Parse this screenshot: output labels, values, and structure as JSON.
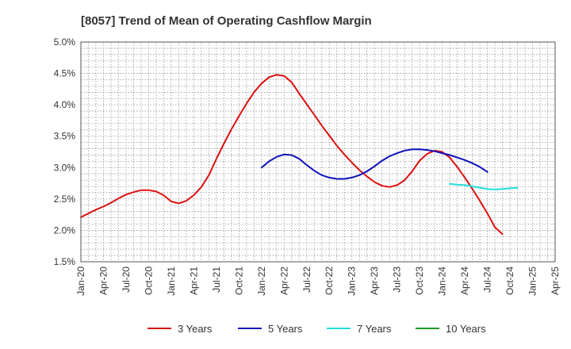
{
  "chart_data": {
    "type": "line",
    "title": "[8057]  Trend of Mean of Operating Cashflow Margin",
    "xlabel": "",
    "ylabel": "",
    "x_ticks": [
      "Jan-20",
      "Apr-20",
      "Jul-20",
      "Oct-20",
      "Jan-21",
      "Apr-21",
      "Jul-21",
      "Oct-21",
      "Jan-22",
      "Apr-22",
      "Jul-22",
      "Oct-22",
      "Jan-23",
      "Apr-23",
      "Jul-23",
      "Oct-23",
      "Jan-24",
      "Apr-24",
      "Jul-24",
      "Oct-24",
      "Jan-25",
      "Apr-25"
    ],
    "y_ticks": [
      "1.5%",
      "2.0%",
      "2.5%",
      "3.0%",
      "3.5%",
      "4.0%",
      "4.5%",
      "5.0%"
    ],
    "ylim": [
      1.5,
      5.0
    ],
    "grid": true,
    "legend_position": "bottom",
    "series": [
      {
        "name": "3 Years",
        "color": "#dd1111",
        "points": [
          [
            "Jan-20",
            2.21
          ],
          [
            "Feb-20",
            2.27
          ],
          [
            "Mar-20",
            2.33
          ],
          [
            "Apr-20",
            2.38
          ],
          [
            "May-20",
            2.44
          ],
          [
            "Jun-20",
            2.51
          ],
          [
            "Jul-20",
            2.57
          ],
          [
            "Aug-20",
            2.61
          ],
          [
            "Sep-20",
            2.64
          ],
          [
            "Oct-20",
            2.64
          ],
          [
            "Nov-20",
            2.62
          ],
          [
            "Dec-20",
            2.56
          ],
          [
            "Jan-21",
            2.46
          ],
          [
            "Feb-21",
            2.43
          ],
          [
            "Mar-21",
            2.47
          ],
          [
            "Apr-21",
            2.56
          ],
          [
            "May-21",
            2.69
          ],
          [
            "Jun-21",
            2.88
          ],
          [
            "Jul-21",
            3.14
          ],
          [
            "Aug-21",
            3.38
          ],
          [
            "Sep-21",
            3.61
          ],
          [
            "Oct-21",
            3.82
          ],
          [
            "Nov-21",
            4.02
          ],
          [
            "Dec-21",
            4.2
          ],
          [
            "Jan-22",
            4.34
          ],
          [
            "Feb-22",
            4.44
          ],
          [
            "Mar-22",
            4.48
          ],
          [
            "Apr-22",
            4.46
          ],
          [
            "May-22",
            4.36
          ],
          [
            "Jun-22",
            4.18
          ],
          [
            "Jul-22",
            4.01
          ],
          [
            "Aug-22",
            3.84
          ],
          [
            "Sep-22",
            3.67
          ],
          [
            "Oct-22",
            3.51
          ],
          [
            "Nov-22",
            3.35
          ],
          [
            "Dec-22",
            3.21
          ],
          [
            "Jan-23",
            3.08
          ],
          [
            "Feb-23",
            2.96
          ],
          [
            "Mar-23",
            2.86
          ],
          [
            "Apr-23",
            2.77
          ],
          [
            "May-23",
            2.71
          ],
          [
            "Jun-23",
            2.69
          ],
          [
            "Jul-23",
            2.72
          ],
          [
            "Aug-23",
            2.8
          ],
          [
            "Sep-23",
            2.94
          ],
          [
            "Oct-23",
            3.11
          ],
          [
            "Nov-23",
            3.22
          ],
          [
            "Dec-23",
            3.27
          ],
          [
            "Jan-24",
            3.25
          ],
          [
            "Feb-24",
            3.16
          ],
          [
            "Mar-24",
            3.01
          ],
          [
            "Apr-24",
            2.84
          ],
          [
            "May-24",
            2.66
          ],
          [
            "Jun-24",
            2.47
          ],
          [
            "Jul-24",
            2.27
          ],
          [
            "Aug-24",
            2.05
          ],
          [
            "Sep-24",
            1.94
          ]
        ]
      },
      {
        "name": "5 Years",
        "color": "#1111bb",
        "points": [
          [
            "Jan-22",
            3.0
          ],
          [
            "Feb-22",
            3.1
          ],
          [
            "Mar-22",
            3.17
          ],
          [
            "Apr-22",
            3.21
          ],
          [
            "May-22",
            3.2
          ],
          [
            "Jun-22",
            3.14
          ],
          [
            "Jul-22",
            3.04
          ],
          [
            "Aug-22",
            2.95
          ],
          [
            "Sep-22",
            2.88
          ],
          [
            "Oct-22",
            2.84
          ],
          [
            "Nov-22",
            2.82
          ],
          [
            "Dec-22",
            2.82
          ],
          [
            "Jan-23",
            2.84
          ],
          [
            "Feb-23",
            2.88
          ],
          [
            "Mar-23",
            2.94
          ],
          [
            "Apr-23",
            3.02
          ],
          [
            "May-23",
            3.11
          ],
          [
            "Jun-23",
            3.18
          ],
          [
            "Jul-23",
            3.23
          ],
          [
            "Aug-23",
            3.27
          ],
          [
            "Sep-23",
            3.29
          ],
          [
            "Oct-23",
            3.29
          ],
          [
            "Nov-23",
            3.28
          ],
          [
            "Dec-23",
            3.26
          ],
          [
            "Jan-24",
            3.23
          ],
          [
            "Feb-24",
            3.2
          ],
          [
            "Mar-24",
            3.16
          ],
          [
            "Apr-24",
            3.12
          ],
          [
            "May-24",
            3.07
          ],
          [
            "Jun-24",
            3.01
          ],
          [
            "Jul-24",
            2.93
          ]
        ]
      },
      {
        "name": "7 Years",
        "color": "#22dddd",
        "points": [
          [
            "Feb-24",
            2.74
          ],
          [
            "Mar-24",
            2.73
          ],
          [
            "Apr-24",
            2.72
          ],
          [
            "May-24",
            2.7
          ],
          [
            "Jun-24",
            2.68
          ],
          [
            "Jul-24",
            2.66
          ],
          [
            "Aug-24",
            2.65
          ],
          [
            "Sep-24",
            2.66
          ],
          [
            "Oct-24",
            2.67
          ],
          [
            "Nov-24",
            2.68
          ]
        ]
      },
      {
        "name": "10 Years",
        "color": "#229922",
        "points": []
      }
    ]
  }
}
